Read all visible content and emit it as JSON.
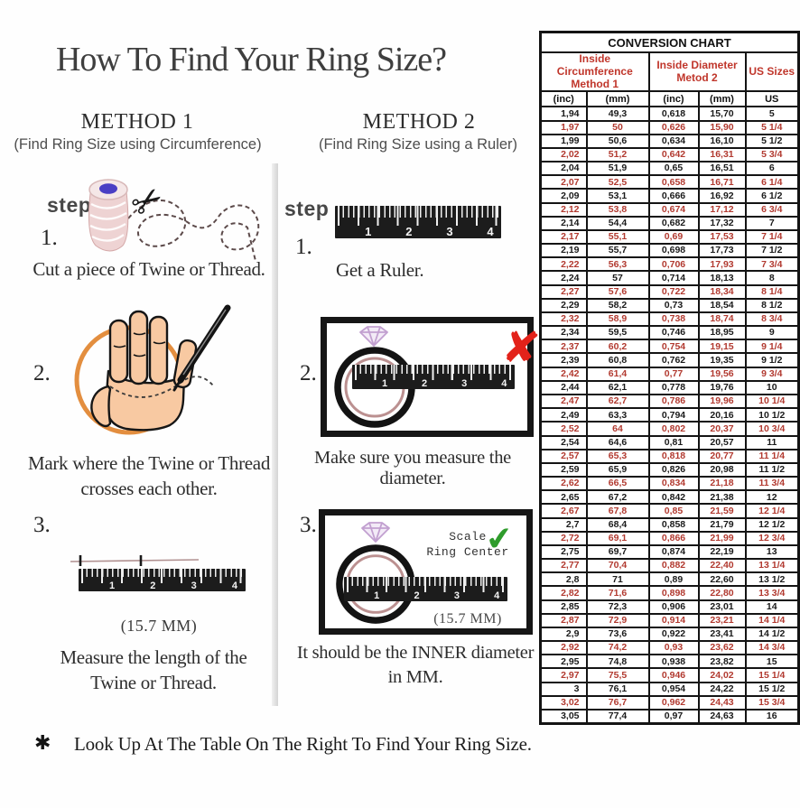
{
  "title": "How To Find Your Ring Size?",
  "methods": {
    "method1": {
      "heading": "METHOD 1",
      "subheading": "(Find Ring Size using Circumference)",
      "step_label": "step",
      "step1": {
        "num": "1.",
        "caption": "Cut a piece of Twine or Thread."
      },
      "step2": {
        "num": "2.",
        "caption_lines": [
          "Mark where the Twine or Thread",
          "crosses each other."
        ]
      },
      "step3": {
        "num": "3.",
        "measurement": "(15.7 MM)",
        "caption_lines": [
          "Measure the length of the",
          "Twine or Thread."
        ]
      }
    },
    "method2": {
      "heading": "METHOD 2",
      "subheading": "(Find Ring Size using a Ruler)",
      "step_label": "step",
      "step1": {
        "num": "1.",
        "caption": "Get a Ruler."
      },
      "step2": {
        "num": "2.",
        "caption": "Make sure you measure the diameter.",
        "wrong_mark": "✘"
      },
      "step3": {
        "num": "3.",
        "scale_label_lines": [
          "Scale",
          "Ring Center"
        ],
        "right_mark": "✔",
        "measurement": "(15.7 MM)",
        "caption_lines": [
          "It should be the INNER diameter",
          "in MM."
        ]
      }
    }
  },
  "ruler": {
    "numbers": [
      "1",
      "2",
      "3",
      "4"
    ]
  },
  "footnote": {
    "bullet": "✱",
    "text": "Look Up At The Table On The Right To Find Your Ring Size."
  },
  "chart_data": {
    "type": "table",
    "title": "CONVERSION CHART",
    "column_groups": [
      {
        "label": "Inside Circumference Method 1",
        "span": 2
      },
      {
        "label": "Inside Diameter Metod 2",
        "span": 2
      },
      {
        "label": "US Sizes",
        "span": 1
      }
    ],
    "columns": [
      "(inc)",
      "(mm)",
      "(inc)",
      "(mm)",
      "US"
    ],
    "row_color_pattern": [
      "black",
      "red"
    ],
    "rows": [
      [
        "1,94",
        "49,3",
        "0,618",
        "15,70",
        "5"
      ],
      [
        "1,97",
        "50",
        "0,626",
        "15,90",
        "5 1/4"
      ],
      [
        "1,99",
        "50,6",
        "0,634",
        "16,10",
        "5 1/2"
      ],
      [
        "2,02",
        "51,2",
        "0,642",
        "16,31",
        "5 3/4"
      ],
      [
        "2,04",
        "51,9",
        "0,65",
        "16,51",
        "6"
      ],
      [
        "2,07",
        "52,5",
        "0,658",
        "16,71",
        "6 1/4"
      ],
      [
        "2,09",
        "53,1",
        "0,666",
        "16,92",
        "6 1/2"
      ],
      [
        "2,12",
        "53,8",
        "0,674",
        "17,12",
        "6 3/4"
      ],
      [
        "2,14",
        "54,4",
        "0,682",
        "17,32",
        "7"
      ],
      [
        "2,17",
        "55,1",
        "0,69",
        "17,53",
        "7 1/4"
      ],
      [
        "2,19",
        "55,7",
        "0,698",
        "17,73",
        "7 1/2"
      ],
      [
        "2,22",
        "56,3",
        "0,706",
        "17,93",
        "7 3/4"
      ],
      [
        "2,24",
        "57",
        "0,714",
        "18,13",
        "8"
      ],
      [
        "2,27",
        "57,6",
        "0,722",
        "18,34",
        "8 1/4"
      ],
      [
        "2,29",
        "58,2",
        "0,73",
        "18,54",
        "8 1/2"
      ],
      [
        "2,32",
        "58,9",
        "0,738",
        "18,74",
        "8 3/4"
      ],
      [
        "2,34",
        "59,5",
        "0,746",
        "18,95",
        "9"
      ],
      [
        "2,37",
        "60,2",
        "0,754",
        "19,15",
        "9 1/4"
      ],
      [
        "2,39",
        "60,8",
        "0,762",
        "19,35",
        "9 1/2"
      ],
      [
        "2,42",
        "61,4",
        "0,77",
        "19,56",
        "9 3/4"
      ],
      [
        "2,44",
        "62,1",
        "0,778",
        "19,76",
        "10"
      ],
      [
        "2,47",
        "62,7",
        "0,786",
        "19,96",
        "10 1/4"
      ],
      [
        "2,49",
        "63,3",
        "0,794",
        "20,16",
        "10 1/2"
      ],
      [
        "2,52",
        "64",
        "0,802",
        "20,37",
        "10 3/4"
      ],
      [
        "2,54",
        "64,6",
        "0,81",
        "20,57",
        "11"
      ],
      [
        "2,57",
        "65,3",
        "0,818",
        "20,77",
        "11 1/4"
      ],
      [
        "2,59",
        "65,9",
        "0,826",
        "20,98",
        "11 1/2"
      ],
      [
        "2,62",
        "66,5",
        "0,834",
        "21,18",
        "11 3/4"
      ],
      [
        "2,65",
        "67,2",
        "0,842",
        "21,38",
        "12"
      ],
      [
        "2,67",
        "67,8",
        "0,85",
        "21,59",
        "12 1/4"
      ],
      [
        "2,7",
        "68,4",
        "0,858",
        "21,79",
        "12 1/2"
      ],
      [
        "2,72",
        "69,1",
        "0,866",
        "21,99",
        "12 3/4"
      ],
      [
        "2,75",
        "69,7",
        "0,874",
        "22,19",
        "13"
      ],
      [
        "2,77",
        "70,4",
        "0,882",
        "22,40",
        "13 1/4"
      ],
      [
        "2,8",
        "71",
        "0,89",
        "22,60",
        "13 1/2"
      ],
      [
        "2,82",
        "71,6",
        "0,898",
        "22,80",
        "13 3/4"
      ],
      [
        "2,85",
        "72,3",
        "0,906",
        "23,01",
        "14"
      ],
      [
        "2,87",
        "72,9",
        "0,914",
        "23,21",
        "14 1/4"
      ],
      [
        "2,9",
        "73,6",
        "0,922",
        "23,41",
        "14 1/2"
      ],
      [
        "2,92",
        "74,2",
        "0,93",
        "23,62",
        "14 3/4"
      ],
      [
        "2,95",
        "74,8",
        "0,938",
        "23,82",
        "15"
      ],
      [
        "2,97",
        "75,5",
        "0,946",
        "24,02",
        "15 1/4"
      ],
      [
        "3",
        "76,1",
        "0,954",
        "24,22",
        "15 1/2"
      ],
      [
        "3,02",
        "76,7",
        "0,962",
        "24,43",
        "15 3/4"
      ],
      [
        "3,05",
        "77,4",
        "0,97",
        "24,63",
        "16"
      ]
    ]
  },
  "colors": {
    "accent_red": "#b23a30",
    "header_red": "#c0362b",
    "table_border": "#141414",
    "check_green": "#2f9c2c",
    "cross_red": "#e3221a",
    "hand_skin": "#f8c9a2",
    "circle_orange": "#e1842f",
    "spool_pink": "#eed3d3",
    "diamond_purple": "#c2a0d0"
  }
}
